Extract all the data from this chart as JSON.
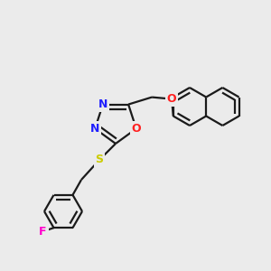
{
  "bg_color": "#ebebeb",
  "bond_color": "#1a1a1a",
  "bond_width": 1.6,
  "dbo": 5.0,
  "atom_colors": {
    "N": "#2020ff",
    "O": "#ff2020",
    "S": "#cccc00",
    "F": "#ff00cc"
  },
  "font_size": 9,
  "fig_size": [
    3.0,
    3.0
  ],
  "dpi": 100
}
